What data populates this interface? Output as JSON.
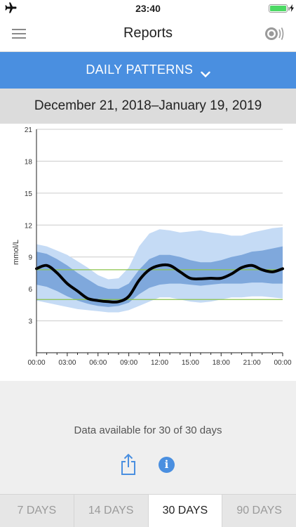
{
  "status_bar": {
    "time": "23:40"
  },
  "nav": {
    "title": "Reports"
  },
  "report_selector": {
    "label": "DAILY PATTERNS"
  },
  "date_range": "December 21, 2018–January 19, 2019",
  "chart_data": {
    "type": "area",
    "title": "",
    "xlabel": "",
    "ylabel": "mmol/L",
    "x_ticks": [
      "00:00",
      "03:00",
      "06:00",
      "09:00",
      "12:00",
      "15:00",
      "18:00",
      "21:00",
      "00:00"
    ],
    "y_ticks": [
      3,
      6,
      9,
      12,
      15,
      18,
      21
    ],
    "xlim": [
      0,
      24
    ],
    "ylim": [
      0,
      21
    ],
    "grid": true,
    "target_range": [
      5.0,
      7.8
    ],
    "colors": {
      "outer_band": "#c5dbf5",
      "inner_band": "#7fa8dc",
      "median": "#000000",
      "target_lines": "#8bc34a",
      "grid": "#cccccc"
    },
    "x": [
      0,
      1,
      2,
      3,
      4,
      5,
      6,
      7,
      8,
      9,
      10,
      11,
      12,
      13,
      14,
      15,
      16,
      17,
      18,
      19,
      20,
      21,
      22,
      23,
      24
    ],
    "series": [
      {
        "values": [
          10.2,
          10.0,
          9.6,
          9.2,
          8.6,
          8.0,
          7.3,
          6.9,
          7.0,
          8.0,
          10.0,
          11.2,
          11.6,
          11.5,
          11.3,
          11.4,
          11.5,
          11.3,
          11.2,
          11.0,
          11.0,
          11.3,
          11.5,
          11.7,
          11.8
        ]
      },
      {
        "values": [
          9.5,
          9.3,
          8.8,
          8.2,
          7.5,
          6.9,
          6.3,
          6.0,
          6.0,
          6.5,
          7.8,
          8.8,
          9.2,
          9.2,
          9.0,
          8.7,
          8.5,
          8.5,
          8.7,
          9.0,
          9.2,
          9.5,
          9.6,
          9.8,
          10.0
        ]
      },
      {
        "values": [
          7.9,
          8.2,
          7.5,
          6.5,
          5.8,
          5.1,
          4.9,
          4.8,
          4.8,
          5.3,
          6.8,
          7.8,
          8.2,
          8.2,
          7.6,
          7.0,
          6.95,
          7.0,
          7.0,
          7.4,
          8.0,
          8.2,
          7.8,
          7.6,
          7.9
        ]
      },
      {
        "values": [
          6.4,
          6.2,
          5.8,
          5.3,
          4.9,
          4.6,
          4.4,
          4.3,
          4.4,
          4.7,
          5.5,
          6.1,
          6.4,
          6.5,
          6.5,
          6.4,
          6.3,
          6.4,
          6.5,
          6.5,
          6.5,
          6.6,
          6.6,
          6.5,
          6.5
        ]
      },
      {
        "values": [
          4.9,
          4.7,
          4.5,
          4.3,
          4.1,
          4.0,
          3.9,
          3.8,
          3.8,
          4.0,
          4.4,
          4.8,
          5.2,
          5.2,
          5.0,
          4.8,
          4.7,
          4.8,
          5.0,
          5.2,
          5.2,
          5.3,
          5.3,
          5.2,
          5.1
        ]
      }
    ]
  },
  "availability": "Data available for 30 of 30 days",
  "period_tabs": [
    {
      "label": "7 DAYS",
      "active": false
    },
    {
      "label": "14 DAYS",
      "active": false
    },
    {
      "label": "30 DAYS",
      "active": true
    },
    {
      "label": "90 DAYS",
      "active": false
    }
  ]
}
